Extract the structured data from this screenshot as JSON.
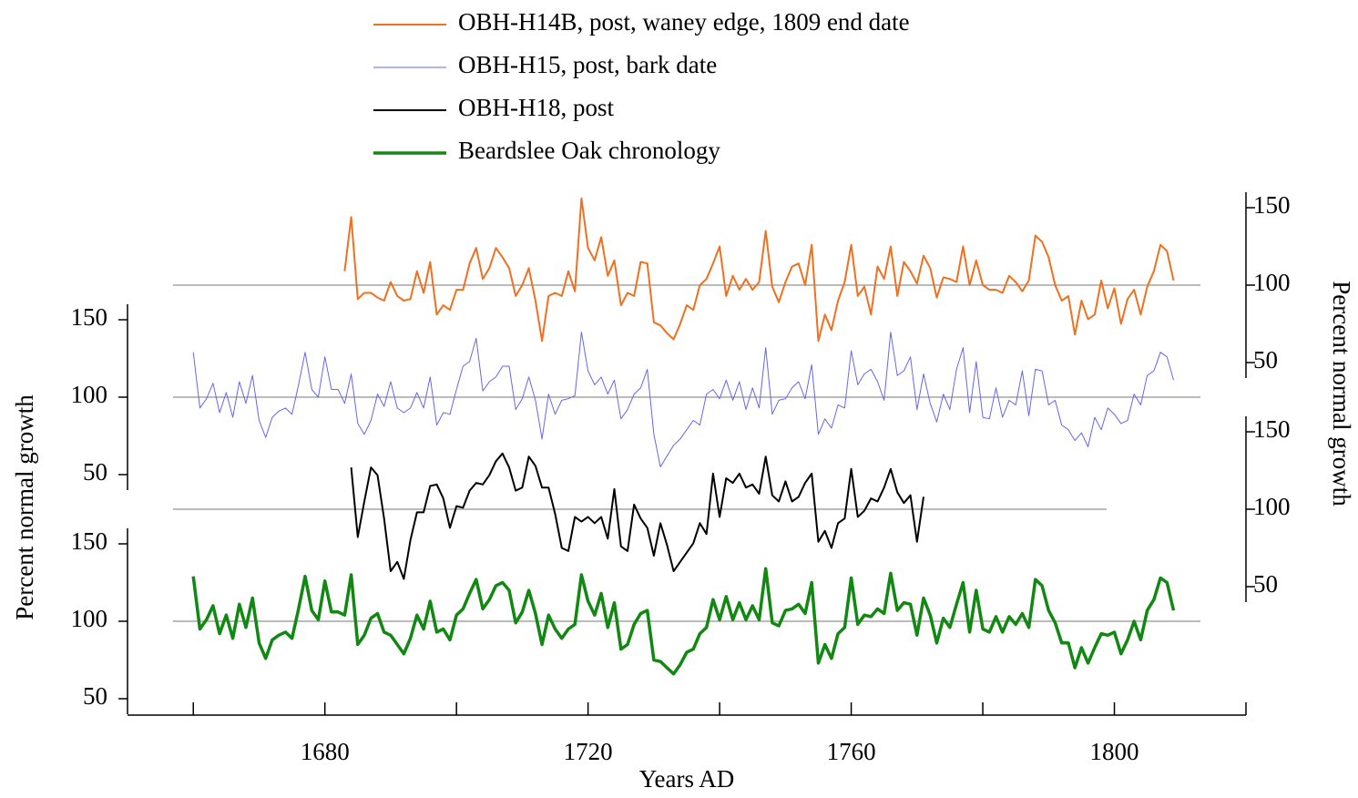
{
  "chart_data": {
    "type": "line",
    "xlabel": "Years AD",
    "ylabel": "Percent normal growth",
    "y2label": "Percent normal growth",
    "xlim": [
      1650,
      1820
    ],
    "xticks": [
      1680,
      1720,
      1760,
      1800
    ],
    "xminorticks": [
      1660,
      1700,
      1740,
      1780,
      1820
    ],
    "x": [
      1660,
      1661,
      1662,
      1663,
      1664,
      1665,
      1666,
      1667,
      1668,
      1669,
      1670,
      1671,
      1672,
      1673,
      1674,
      1675,
      1676,
      1677,
      1678,
      1679,
      1680,
      1681,
      1682,
      1683,
      1684,
      1685,
      1686,
      1687,
      1688,
      1689,
      1690,
      1691,
      1692,
      1693,
      1694,
      1695,
      1696,
      1697,
      1698,
      1699,
      1700,
      1701,
      1702,
      1703,
      1704,
      1705,
      1706,
      1707,
      1708,
      1709,
      1710,
      1711,
      1712,
      1713,
      1714,
      1715,
      1716,
      1717,
      1718,
      1719,
      1720,
      1721,
      1722,
      1723,
      1724,
      1725,
      1726,
      1727,
      1728,
      1729,
      1730,
      1731,
      1732,
      1733,
      1734,
      1735,
      1736,
      1737,
      1738,
      1739,
      1740,
      1741,
      1742,
      1743,
      1744,
      1745,
      1746,
      1747,
      1748,
      1749,
      1750,
      1751,
      1752,
      1753,
      1754,
      1755,
      1756,
      1757,
      1758,
      1759,
      1760,
      1761,
      1762,
      1763,
      1764,
      1765,
      1766,
      1767,
      1768,
      1769,
      1770,
      1771,
      1772,
      1773,
      1774,
      1775,
      1776,
      1777,
      1778,
      1779,
      1780,
      1781,
      1782,
      1783,
      1784,
      1785,
      1786,
      1787,
      1788,
      1789,
      1790,
      1791,
      1792,
      1793,
      1794,
      1795,
      1796,
      1797,
      1798,
      1799,
      1800,
      1801,
      1802,
      1803,
      1804,
      1805,
      1806,
      1807,
      1808,
      1809
    ],
    "series": [
      {
        "name": "OBH-H14B, post, waney edge, 1809 end date",
        "color": "#f07020",
        "width": 2,
        "axis": "y2",
        "ylim": [
          40,
          160
        ],
        "yticks": [
          50,
          100,
          150
        ],
        "reference": 100,
        "values": [
          null,
          null,
          null,
          null,
          null,
          null,
          null,
          null,
          null,
          null,
          null,
          null,
          null,
          null,
          null,
          null,
          null,
          null,
          null,
          null,
          null,
          null,
          null,
          109,
          144,
          91,
          95,
          95,
          92,
          90,
          102,
          93,
          90,
          91,
          109,
          95,
          115,
          81,
          87,
          84,
          97,
          97,
          114,
          124,
          104,
          111,
          124,
          118,
          111,
          93,
          100,
          111,
          90,
          64,
          93,
          95,
          93,
          109,
          96,
          156,
          124,
          116,
          131,
          106,
          116,
          87,
          95,
          93,
          115,
          114,
          76,
          74,
          69,
          65,
          75,
          87,
          84,
          100,
          104,
          114,
          125,
          93,
          106,
          97,
          104,
          97,
          102,
          135,
          99,
          89,
          102,
          112,
          114,
          100,
          126,
          64,
          81,
          71,
          90,
          102,
          126,
          93,
          99,
          81,
          112,
          104,
          125,
          93,
          115,
          109,
          101,
          119,
          111,
          92,
          105,
          104,
          102,
          125,
          100,
          116,
          100,
          97,
          97,
          95,
          106,
          102,
          96,
          103,
          132,
          128,
          118,
          100,
          90,
          93,
          68,
          90,
          78,
          81,
          103,
          85,
          98,
          75,
          91,
          97,
          81,
          99,
          109,
          126,
          122,
          103
        ]
      },
      {
        "name": "OBH-H15, post, bark date",
        "color": "#6666ee",
        "width": 1,
        "axis": "y",
        "ylim": [
          40,
          160
        ],
        "yticks": [
          50,
          100,
          150
        ],
        "reference": 100,
        "values": [
          129,
          93,
          99,
          109,
          90,
          103,
          87,
          110,
          96,
          114,
          85,
          74,
          87,
          91,
          93,
          89,
          108,
          129,
          105,
          100,
          126,
          105,
          105,
          96,
          115,
          83,
          76,
          85,
          102,
          94,
          110,
          93,
          90,
          93,
          103,
          93,
          113,
          82,
          90,
          89,
          105,
          120,
          123,
          138,
          104,
          110,
          113,
          120,
          120,
          92,
          99,
          113,
          98,
          73,
          102,
          89,
          98,
          99,
          101,
          142,
          117,
          108,
          113,
          102,
          111,
          86,
          92,
          102,
          106,
          118,
          76,
          55,
          62,
          69,
          73,
          79,
          85,
          82,
          102,
          105,
          99,
          111,
          98,
          110,
          92,
          106,
          93,
          132,
          89,
          98,
          99,
          106,
          110,
          99,
          121,
          76,
          86,
          80,
          95,
          93,
          130,
          108,
          115,
          118,
          110,
          98,
          142,
          114,
          117,
          126,
          92,
          115,
          96,
          84,
          102,
          92,
          118,
          132,
          90,
          123,
          87,
          86,
          106,
          87,
          98,
          95,
          117,
          88,
          118,
          117,
          95,
          98,
          82,
          79,
          72,
          77,
          68,
          87,
          79,
          93,
          89,
          83,
          85,
          102,
          95,
          114,
          117,
          129,
          126,
          111
        ]
      },
      {
        "name": "OBH-H18, post",
        "color": "#000000",
        "width": 2,
        "axis": "y2",
        "ylim": [
          40,
          160
        ],
        "yticks": [
          50,
          100,
          150
        ],
        "reference": 100,
        "values": [
          null,
          null,
          null,
          null,
          null,
          null,
          null,
          null,
          null,
          null,
          null,
          null,
          null,
          null,
          null,
          null,
          null,
          null,
          null,
          null,
          null,
          null,
          null,
          null,
          127,
          82,
          105,
          127,
          122,
          94,
          60,
          66,
          55,
          80,
          98,
          98,
          115,
          116,
          107,
          88,
          102,
          101,
          112,
          117,
          116,
          122,
          131,
          136,
          127,
          112,
          114,
          134,
          128,
          114,
          114,
          97,
          75,
          73,
          95,
          92,
          95,
          91,
          95,
          81,
          113,
          76,
          73,
          103,
          94,
          88,
          70,
          91,
          77,
          60,
          66,
          72,
          78,
          91,
          84,
          123,
          95,
          120,
          117,
          123,
          114,
          116,
          110,
          134,
          109,
          105,
          118,
          105,
          108,
          117,
          123,
          79,
          86,
          75,
          91,
          94,
          126,
          95,
          99,
          107,
          105,
          114,
          126,
          111,
          104,
          109,
          79,
          108,
          null,
          null,
          null,
          null,
          null,
          null,
          null,
          null,
          null,
          null,
          null,
          null,
          null,
          null,
          null,
          null,
          null,
          null,
          null,
          null,
          null,
          null,
          null,
          null,
          null,
          null,
          null,
          null,
          null,
          null,
          null,
          null,
          null,
          null,
          null,
          null,
          null,
          null
        ]
      },
      {
        "name": "Beardslee Oak chronology",
        "color": "#118811",
        "width": 3.5,
        "axis": "y",
        "ylim": [
          40,
          160
        ],
        "yticks": [
          50,
          100,
          150
        ],
        "reference": 100,
        "values": [
          129,
          95,
          101,
          110,
          92,
          104,
          89,
          111,
          96,
          115,
          86,
          76,
          88,
          91,
          93,
          89,
          108,
          129,
          107,
          101,
          126,
          106,
          106,
          104,
          130,
          85,
          91,
          102,
          105,
          93,
          91,
          85,
          79,
          89,
          104,
          95,
          113,
          93,
          95,
          88,
          104,
          108,
          118,
          127,
          108,
          114,
          123,
          125,
          120,
          99,
          106,
          120,
          105,
          85,
          104,
          95,
          89,
          95,
          98,
          130,
          113,
          104,
          118,
          96,
          112,
          82,
          85,
          98,
          105,
          107,
          75,
          74,
          70,
          66,
          72,
          80,
          82,
          92,
          96,
          114,
          101,
          116,
          101,
          112,
          101,
          110,
          101,
          134,
          99,
          97,
          107,
          108,
          111,
          105,
          125,
          73,
          85,
          76,
          92,
          96,
          128,
          98,
          104,
          103,
          108,
          105,
          131,
          107,
          112,
          111,
          91,
          115,
          104,
          86,
          102,
          96,
          111,
          125,
          93,
          120,
          95,
          93,
          103,
          93,
          103,
          98,
          105,
          96,
          127,
          123,
          107,
          99,
          86,
          86,
          70,
          83,
          73,
          83,
          92,
          91,
          93,
          79,
          88,
          100,
          88,
          107,
          114,
          128,
          125,
          107
        ]
      }
    ]
  }
}
